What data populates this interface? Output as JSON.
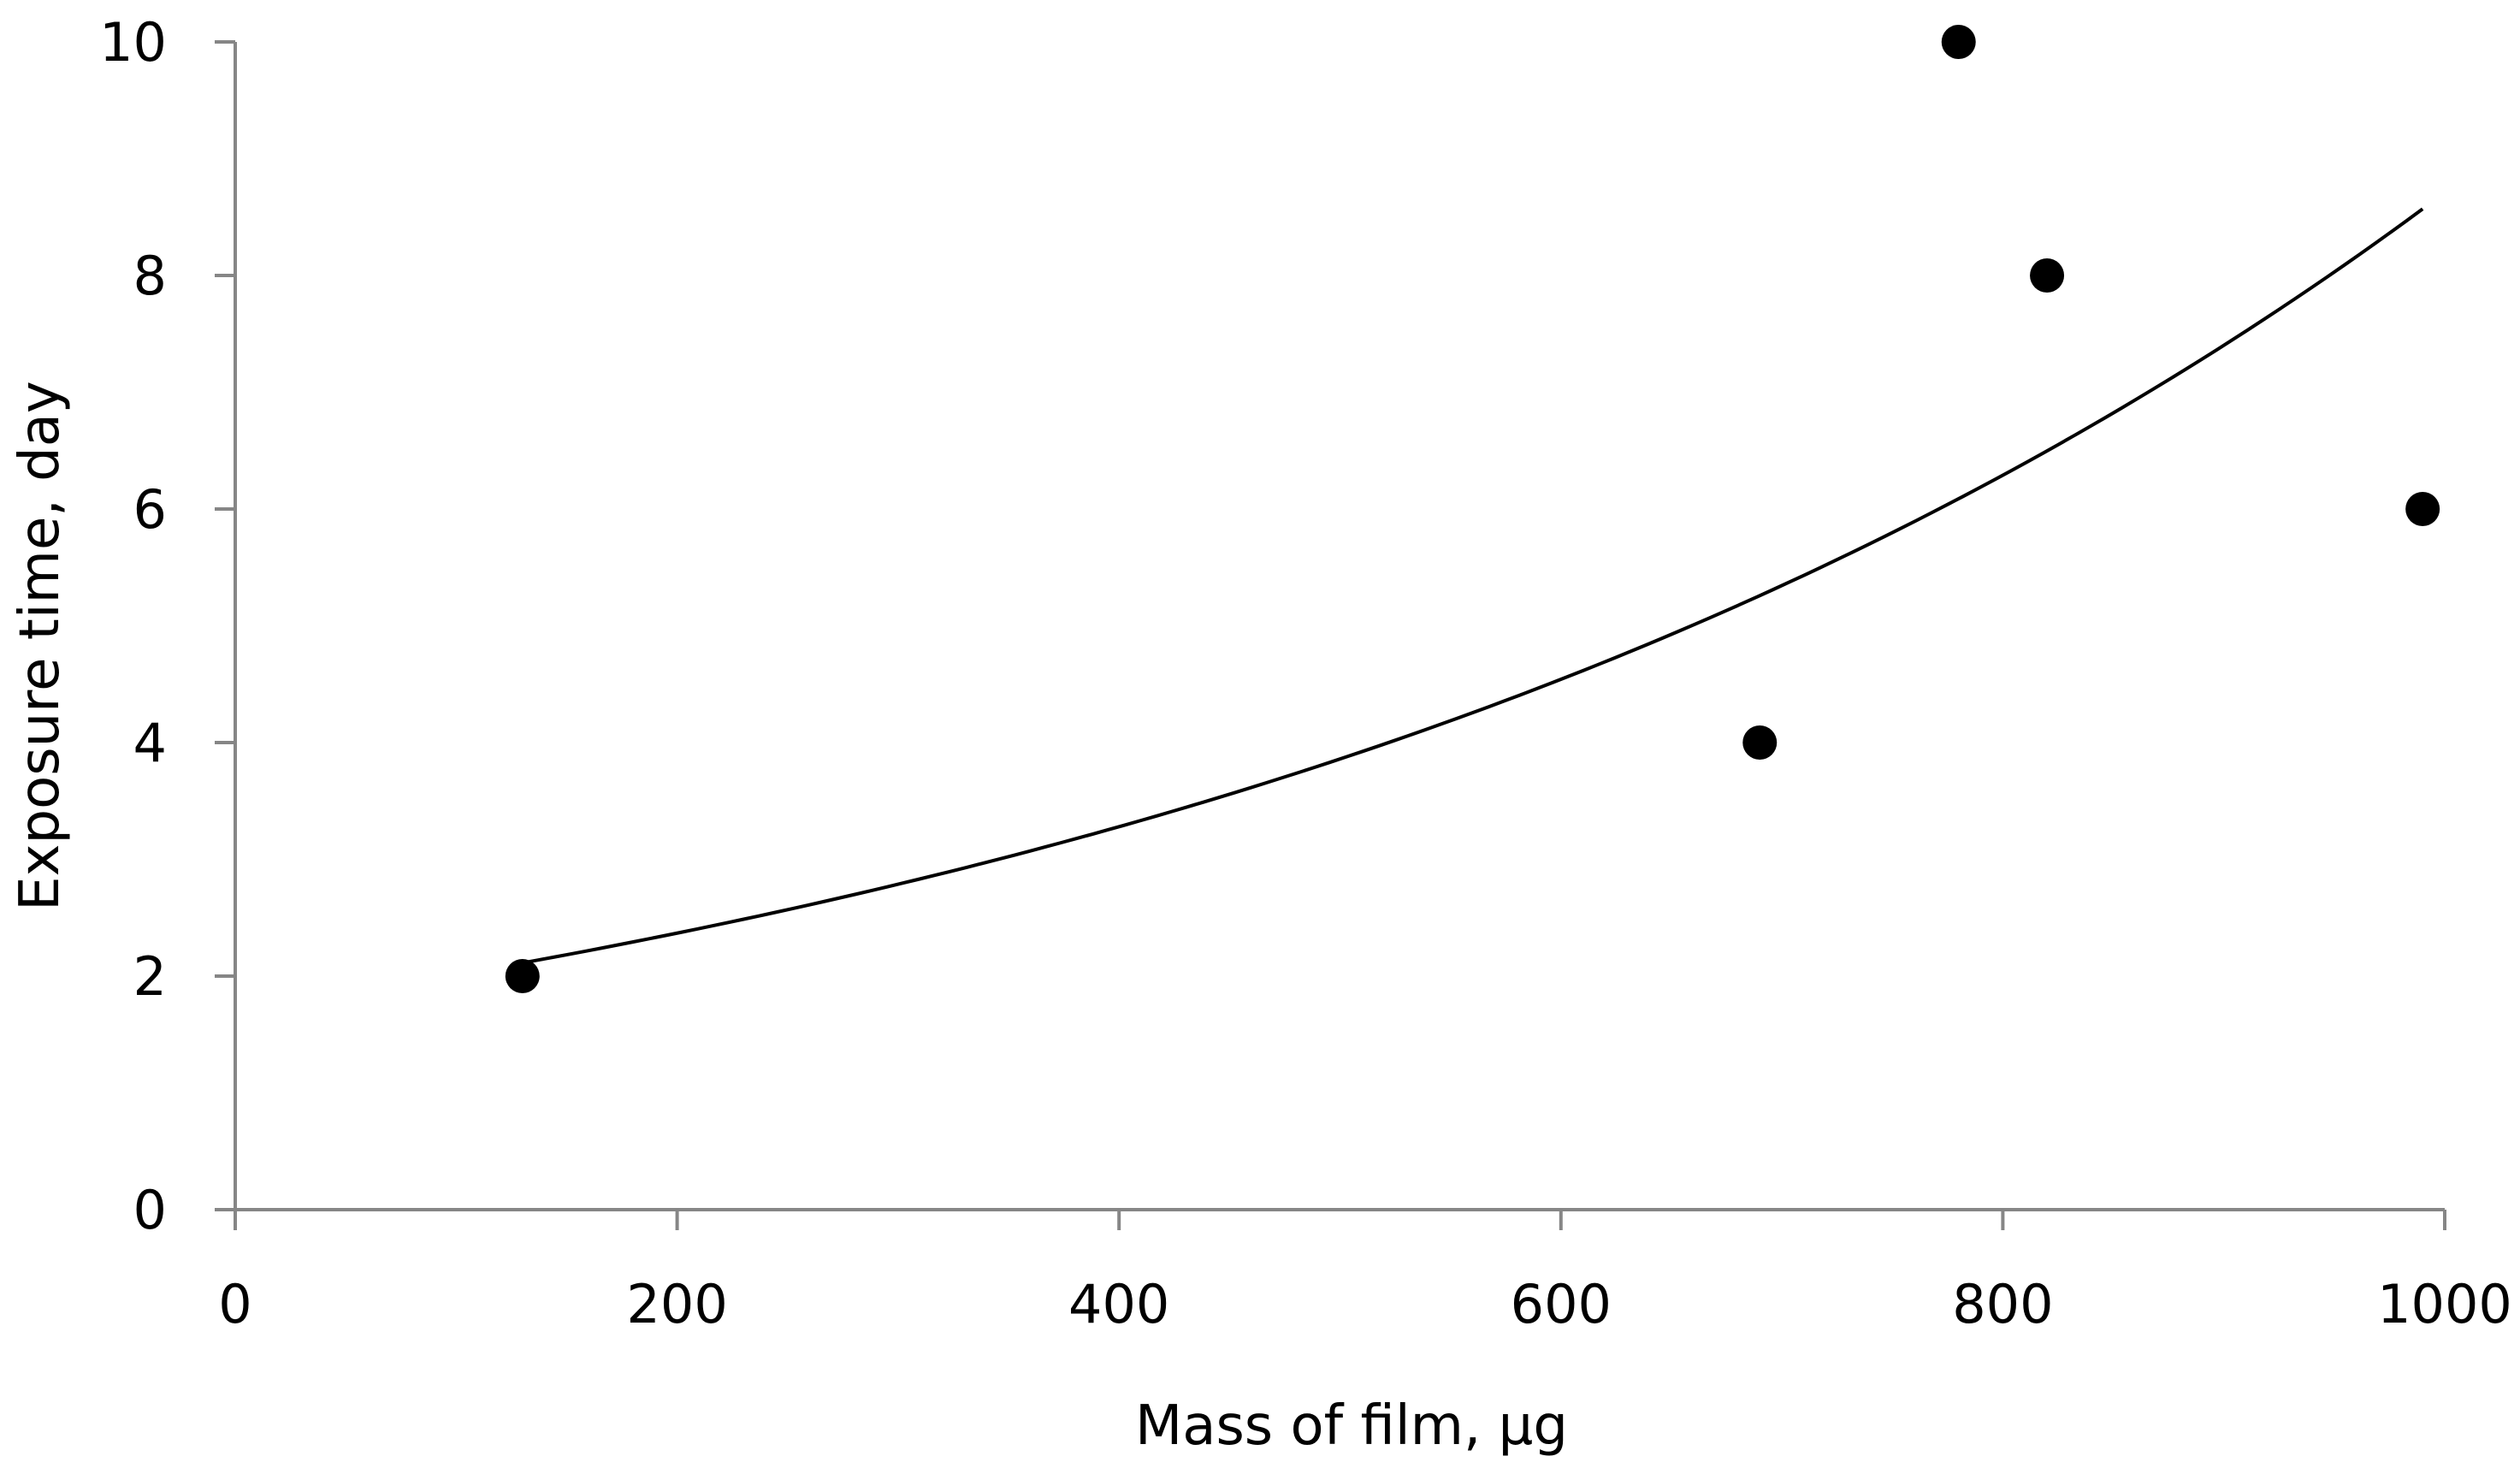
{
  "chart_data": {
    "type": "scatter",
    "xlabel": "Mass of film, µg",
    "ylabel": "Exposure time, day",
    "xlim": [
      0,
      1000
    ],
    "ylim": [
      0,
      10
    ],
    "xticks": [
      0,
      200,
      400,
      600,
      800,
      1000
    ],
    "yticks": [
      0,
      2,
      4,
      6,
      8,
      10
    ],
    "grid": false,
    "legend": "none",
    "series": [
      {
        "type": "scatter",
        "points": [
          {
            "x": 130,
            "y": 2
          },
          {
            "x": 690,
            "y": 4
          },
          {
            "x": 780,
            "y": 10
          },
          {
            "x": 820,
            "y": 8
          },
          {
            "x": 990,
            "y": 6
          }
        ],
        "marker_color": "#000000"
      },
      {
        "type": "trendline",
        "fit": "exponential",
        "x_range": [
          130,
          990
        ],
        "coefficients": {
          "a": 1.71,
          "b": 0.001628
        },
        "line_color": "#000000"
      }
    ],
    "axis_color": "#868686"
  }
}
